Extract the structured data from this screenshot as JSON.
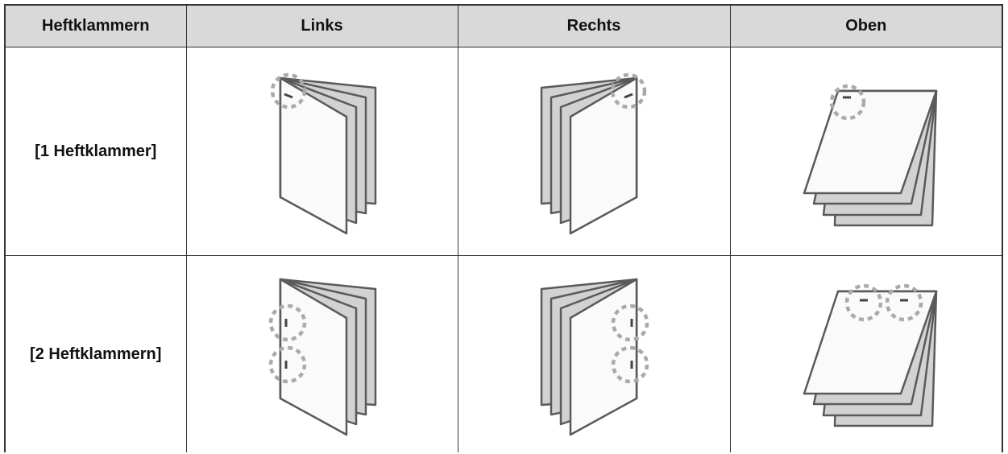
{
  "table": {
    "header": [
      "Heftklammern",
      "Links",
      "Rechts",
      "Oben"
    ],
    "rows": [
      [
        "[1 Heftklammer]"
      ],
      [
        "[2 Heftklammern]"
      ]
    ]
  }
}
